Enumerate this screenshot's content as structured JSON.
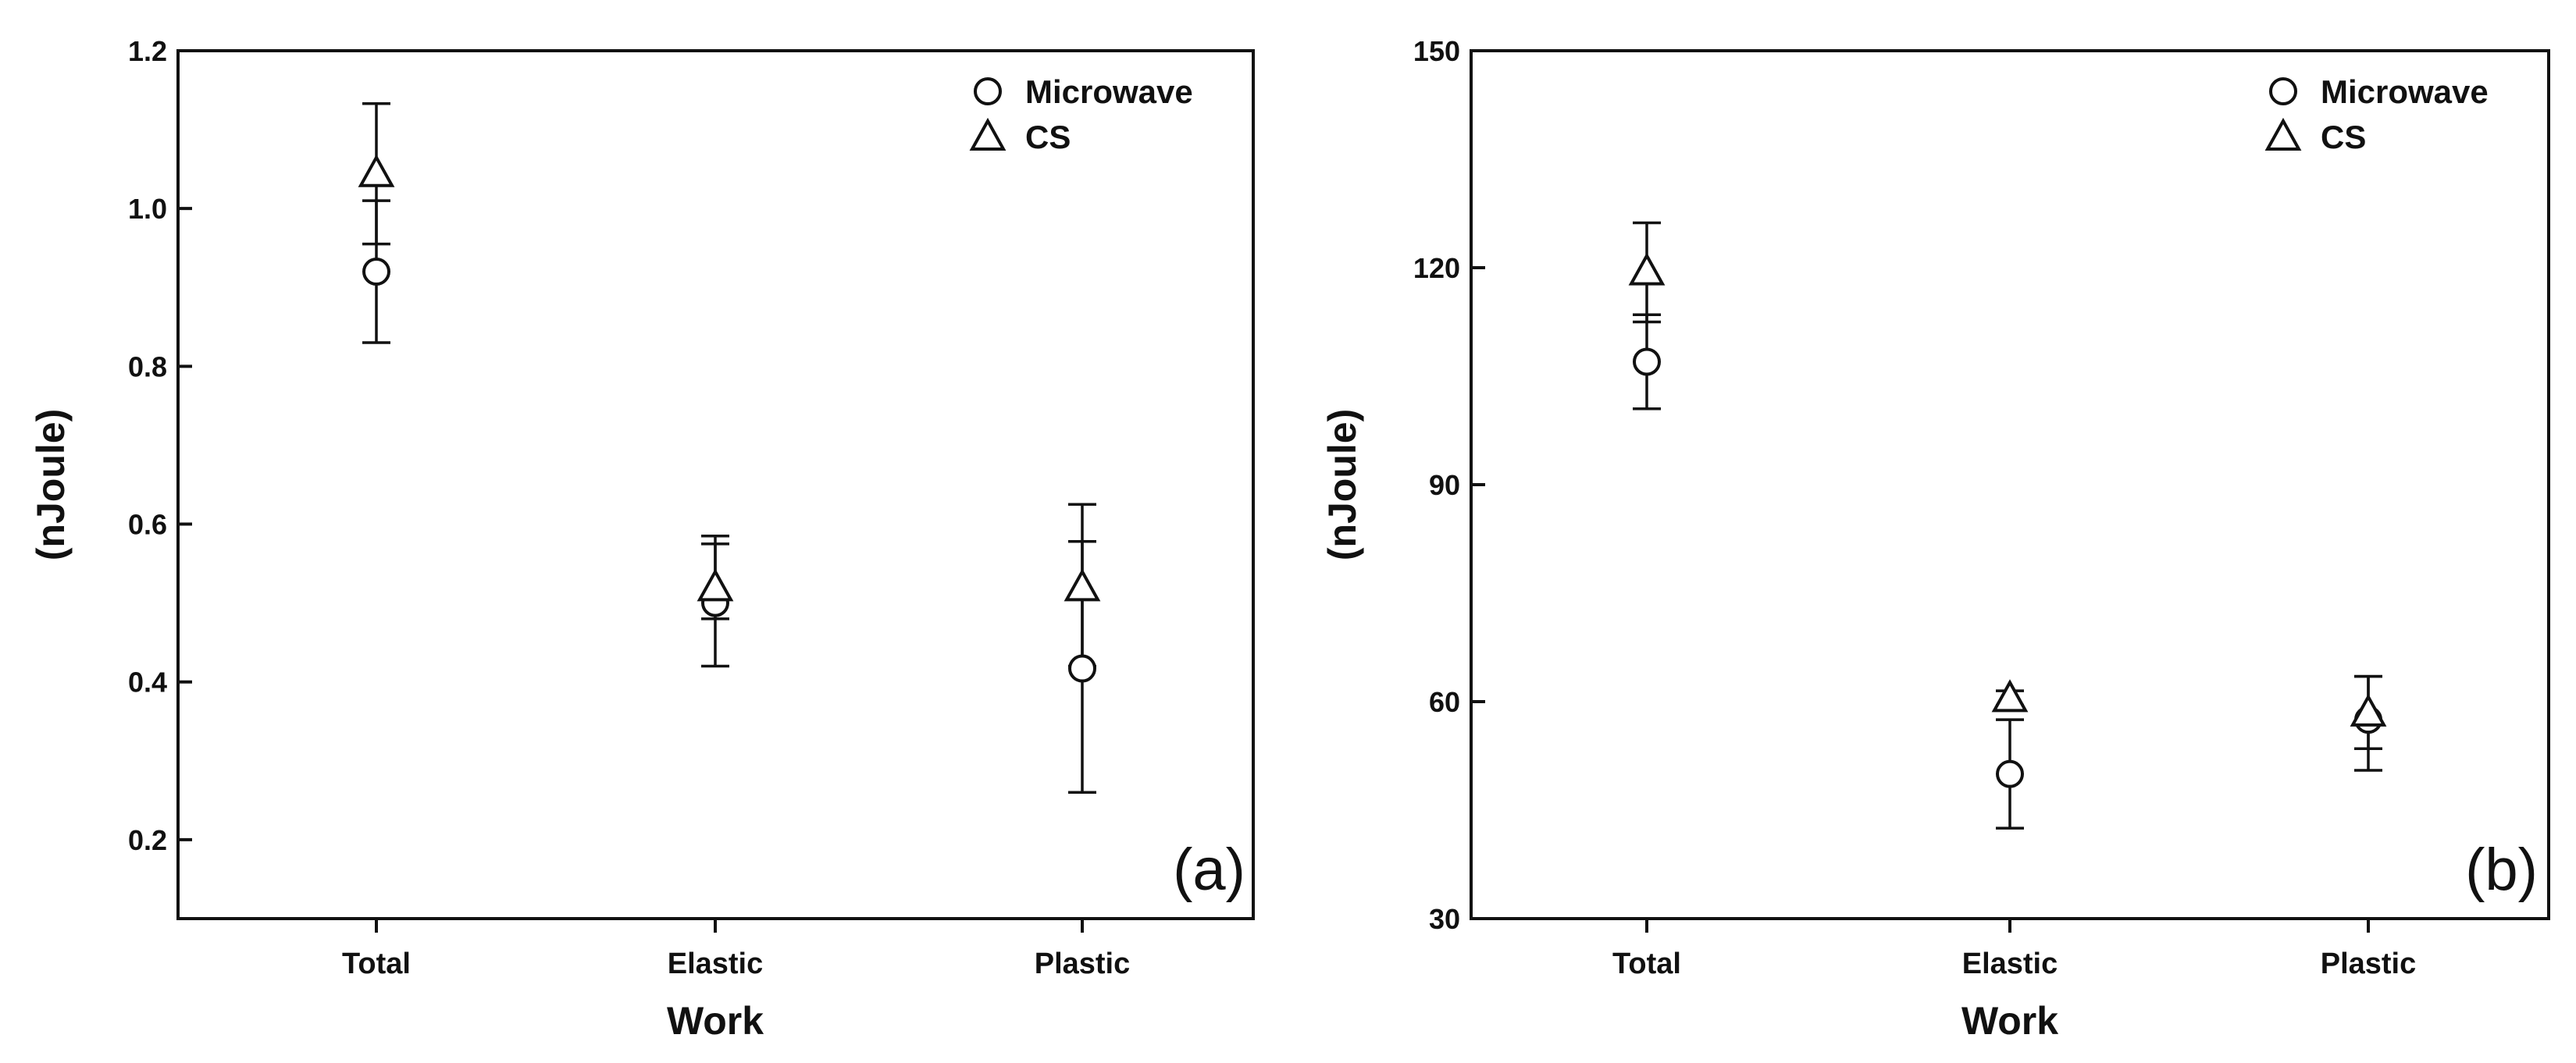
{
  "chart_data": [
    {
      "type": "scatter",
      "panel_label": "(a)",
      "title": "",
      "xlabel": "Work",
      "ylabel": "(nJoule)",
      "categories": [
        "Total",
        "Elastic",
        "Plastic"
      ],
      "ylim": [
        0.1,
        1.2
      ],
      "yticks": [
        0.2,
        0.4,
        0.6,
        0.8,
        1.0,
        1.2
      ],
      "ytick_labels": [
        "0.2",
        "0.4",
        "0.6",
        "0.8",
        "1.0",
        "1.2"
      ],
      "legend_position": "top-right",
      "grid": false,
      "series": [
        {
          "name": "Microwave",
          "marker": "circle",
          "values": [
            0.92,
            0.5,
            0.417
          ],
          "err_low": [
            0.83,
            0.42,
            0.26
          ],
          "err_high": [
            1.01,
            0.575,
            0.578
          ]
        },
        {
          "name": "CS",
          "marker": "triangle",
          "values": [
            1.045,
            0.52,
            0.52
          ],
          "err_low": [
            0.955,
            0.48,
            0.42
          ],
          "err_high": [
            1.133,
            0.585,
            0.625
          ]
        }
      ]
    },
    {
      "type": "scatter",
      "panel_label": "(b)",
      "title": "",
      "xlabel": "Work",
      "ylabel": "(nJoule)",
      "categories": [
        "Total",
        "Elastic",
        "Plastic"
      ],
      "ylim": [
        30,
        150
      ],
      "yticks": [
        30,
        60,
        90,
        120,
        150
      ],
      "ytick_labels": [
        "30",
        "60",
        "90",
        "120",
        "150"
      ],
      "legend_position": "top-right",
      "grid": false,
      "series": [
        {
          "name": "Microwave",
          "marker": "circle",
          "values": [
            107,
            50,
            57.5
          ],
          "err_low": [
            100.5,
            42.5,
            50.5
          ],
          "err_high": [
            113.5,
            57.5,
            63.5
          ]
        },
        {
          "name": "CS",
          "marker": "triangle",
          "values": [
            119.5,
            60.5,
            58.5
          ],
          "err_low": [
            112.5,
            59.5,
            53.5
          ],
          "err_high": [
            126.2,
            61.5,
            63.5
          ]
        }
      ]
    }
  ]
}
